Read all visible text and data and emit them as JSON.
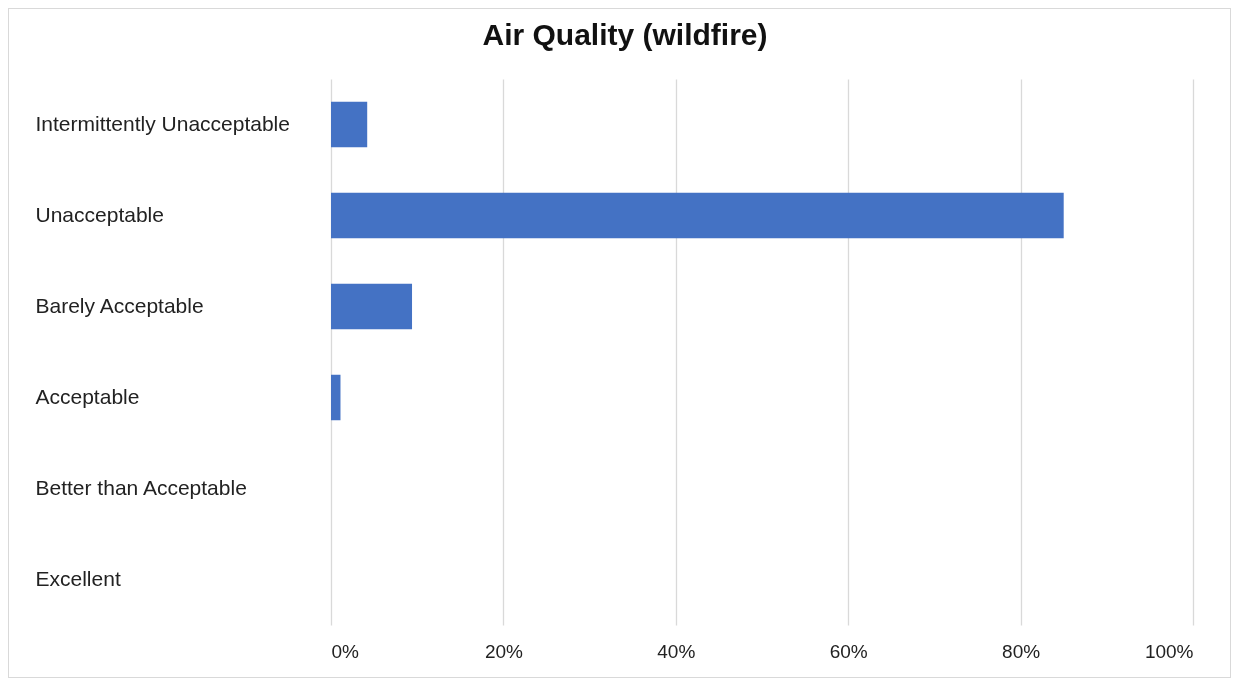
{
  "chart_data": {
    "type": "bar",
    "title": "Air Quality (wildfire)",
    "orientation": "horizontal",
    "categories": [
      "Intermittently Unacceptable",
      "Unacceptable",
      "Barely Acceptable",
      "Acceptable",
      "Better than Acceptable",
      "Excellent"
    ],
    "values": [
      4.2,
      85,
      9.4,
      1.1,
      0,
      0
    ],
    "color": "#4472c4",
    "xlim": [
      0,
      100
    ],
    "xticks": [
      {
        "value": 0,
        "label": "0%"
      },
      {
        "value": 20,
        "label": "20%"
      },
      {
        "value": 40,
        "label": "40%"
      },
      {
        "value": 60,
        "label": "60%"
      },
      {
        "value": 80,
        "label": "80%"
      },
      {
        "value": 100,
        "label": "100%"
      }
    ],
    "grid": "x"
  }
}
